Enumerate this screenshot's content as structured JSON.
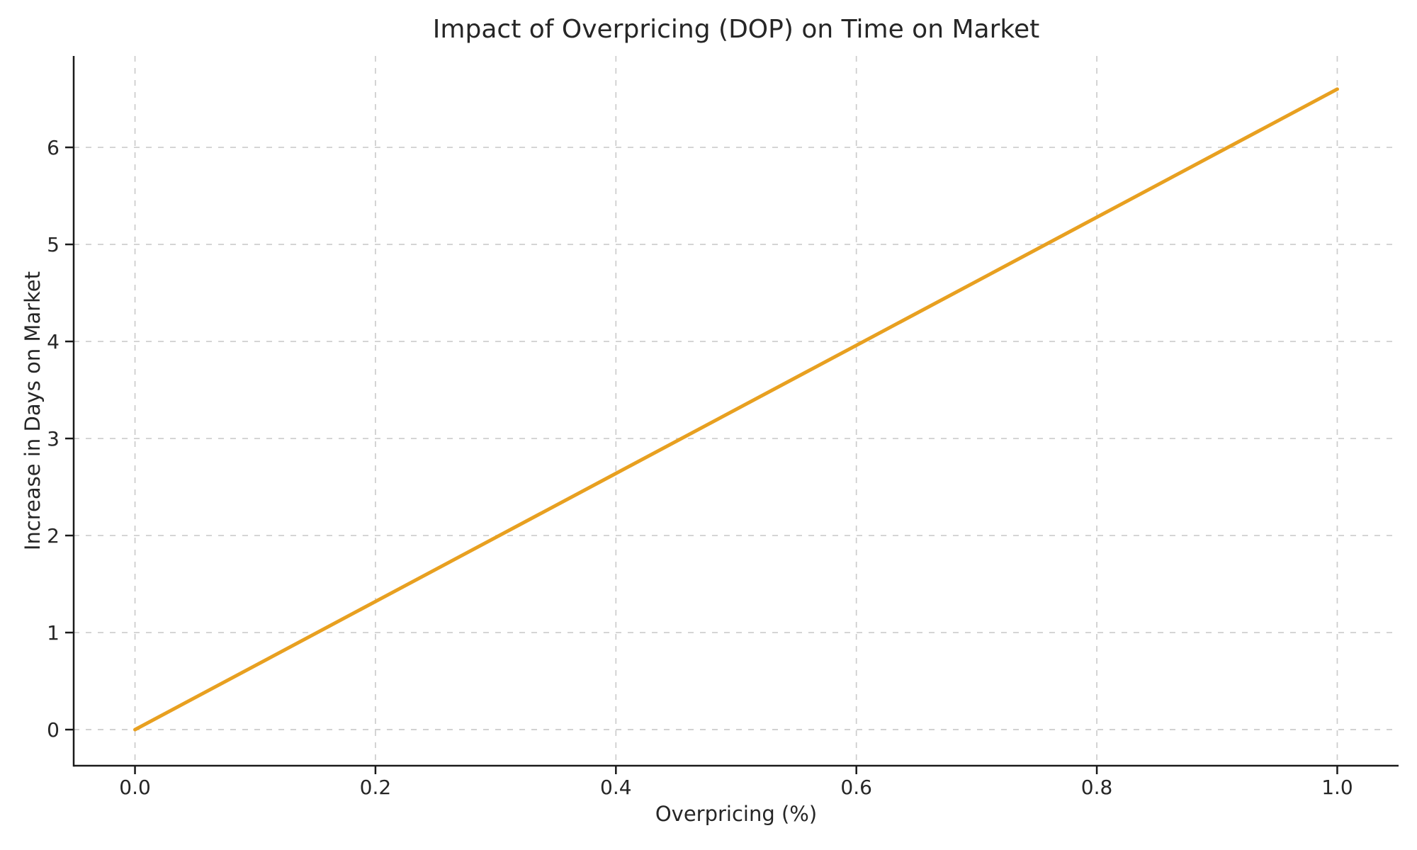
{
  "chart_data": {
    "type": "line",
    "title": "Impact of Overpricing (DOP) on Time on Market",
    "xlabel": "Overpricing (%)",
    "ylabel": "Increase in Days on Market",
    "x": [
      0.0,
      0.2,
      0.4,
      0.6,
      0.8,
      1.0
    ],
    "series": [
      {
        "name": "increase-in-days-on-market",
        "values": [
          0.0,
          1.32,
          2.64,
          3.96,
          5.28,
          6.6
        ],
        "color": "#e8a020",
        "linewidth": 5
      }
    ],
    "xticks": {
      "values": [
        0.0,
        0.2,
        0.4,
        0.6,
        0.8,
        1.0
      ],
      "labels": [
        "0.0",
        "0.2",
        "0.4",
        "0.6",
        "0.8",
        "1.0"
      ]
    },
    "yticks": {
      "values": [
        0,
        1,
        2,
        3,
        4,
        5,
        6
      ],
      "labels": [
        "0",
        "1",
        "2",
        "3",
        "4",
        "5",
        "6"
      ]
    },
    "xlim": [
      -0.051,
      1.051
    ],
    "ylim": [
      -0.372,
      6.942
    ],
    "grid": true,
    "grid_style": "dashed",
    "legend": "none",
    "colors": {
      "line": "#e8a020",
      "grid": "#cccccc",
      "axis": "#1a1a1a",
      "text": "#262626",
      "background": "#ffffff"
    }
  }
}
